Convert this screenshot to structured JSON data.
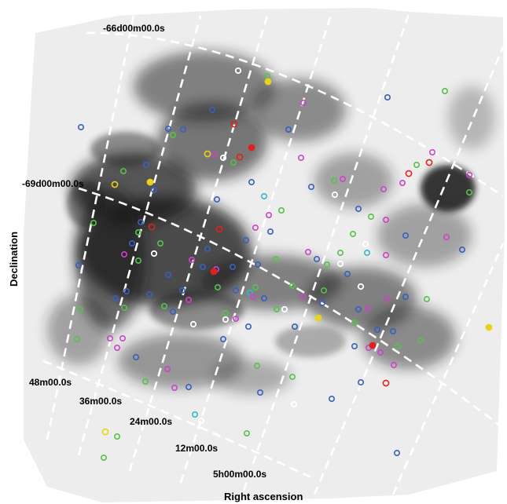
{
  "axes": {
    "x_title": "Right ascension",
    "y_title": "Declination"
  },
  "grid_labels": {
    "dec_top": "-66d00m00.0s",
    "dec_mid": "-69d00m00.0s",
    "ra_48": "48m00.0s",
    "ra_36": "36m00.0s",
    "ra_24": "24m00.0s",
    "ra_12": "12m00.0s",
    "ra_00": "5h00m00.0s"
  },
  "marker_colors": {
    "blue": "#3a5fbf",
    "green": "#55c24a",
    "magenta": "#cc44cc",
    "red": "#e02020",
    "yellow": "#e8d21a",
    "cyan": "#33b8c8",
    "white": "#ffffff"
  },
  "style": {
    "background": "#ffffff",
    "image_base": "#eeeeee",
    "nebula": "#111111",
    "grid_line": "#ffffff"
  }
}
